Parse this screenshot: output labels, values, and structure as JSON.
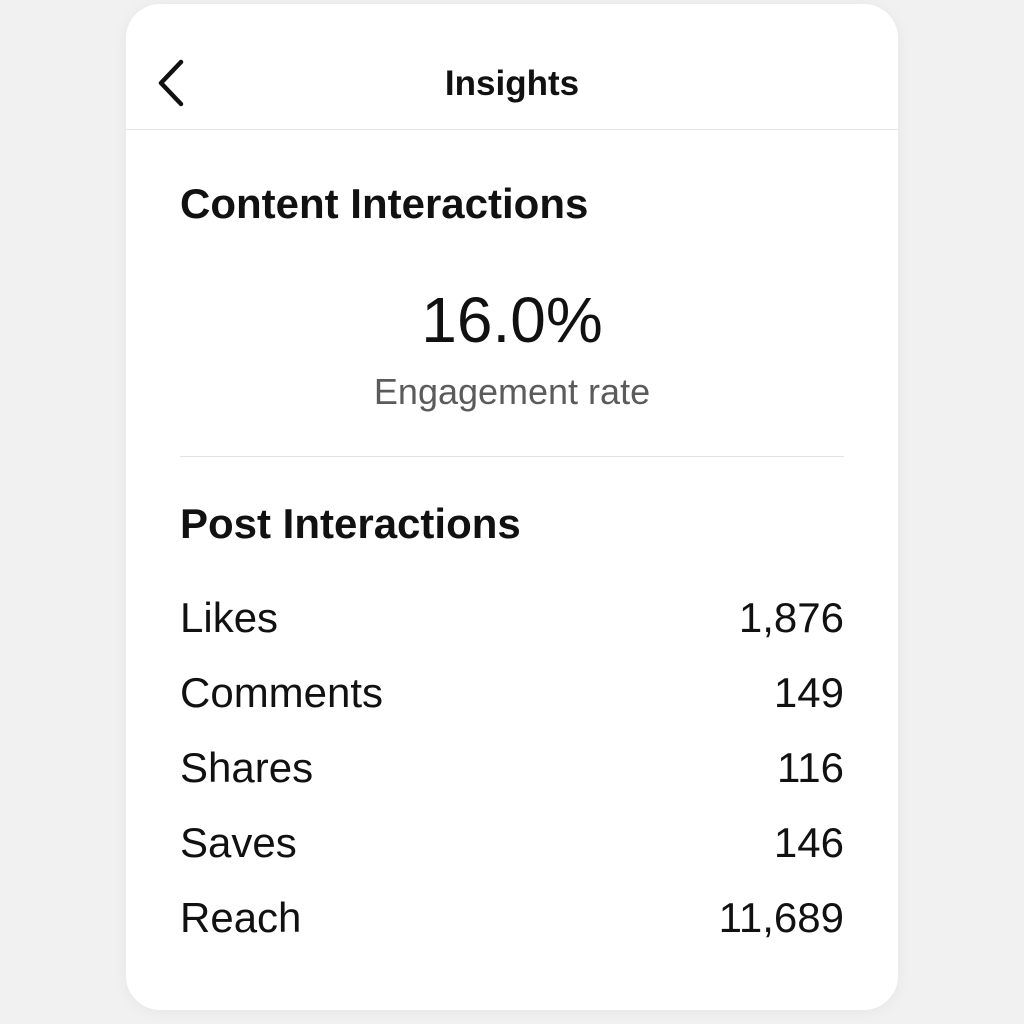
{
  "header": {
    "title": "Insights",
    "back_icon": "chevron-left-icon"
  },
  "content_interactions": {
    "title": "Content Interactions",
    "engagement_rate": "16.0%",
    "engagement_label": "Engagement rate"
  },
  "post_interactions": {
    "title": "Post Interactions",
    "rows": [
      {
        "label": "Likes",
        "value": "1,876"
      },
      {
        "label": "Comments",
        "value": "149"
      },
      {
        "label": "Shares",
        "value": "116"
      },
      {
        "label": "Saves",
        "value": "146"
      },
      {
        "label": "Reach",
        "value": "11,689"
      }
    ]
  },
  "colors": {
    "background": "#f1f1f1",
    "card": "#ffffff",
    "text": "#111111",
    "secondary_text": "#5b5b5b",
    "divider": "#e3e3e3"
  }
}
